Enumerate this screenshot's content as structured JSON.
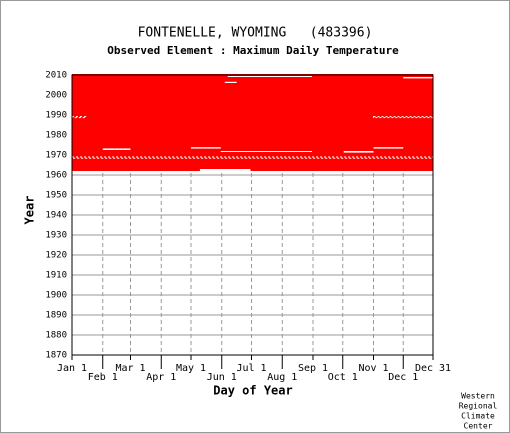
{
  "chart_data": {
    "type": "coverage",
    "title": "FONTENELLE, WYOMING   (483396)",
    "subtitle": "Observed Element : Maximum Daily Temperature",
    "x_label": "Day of Year",
    "y_label": "Year",
    "credit": [
      "Western",
      "Regional",
      "Climate",
      "Center"
    ],
    "color": "#ff0000",
    "gap_color": "#ffffff",
    "xlim": [
      1,
      365
    ],
    "ylim": [
      1870,
      2010
    ],
    "xticks": [
      {
        "value": 1,
        "label": "Jan 1"
      },
      {
        "value": 32,
        "label": "Feb 1"
      },
      {
        "value": 60,
        "label": "Mar 1"
      },
      {
        "value": 91,
        "label": "Apr 1"
      },
      {
        "value": 121,
        "label": "May 1"
      },
      {
        "value": 152,
        "label": "Jun 1"
      },
      {
        "value": 182,
        "label": "Jul 1"
      },
      {
        "value": 213,
        "label": "Aug 1"
      },
      {
        "value": 244,
        "label": "Sep 1"
      },
      {
        "value": 274,
        "label": "Oct 1"
      },
      {
        "value": 305,
        "label": "Nov 1"
      },
      {
        "value": 335,
        "label": "Dec 1"
      },
      {
        "value": 365,
        "label": "Dec 31"
      }
    ],
    "yticks": [
      2010,
      2000,
      1990,
      1980,
      1970,
      1960,
      1950,
      1940,
      1930,
      1920,
      1910,
      1900,
      1890,
      1880,
      1870
    ],
    "blocks": [
      {
        "x": [
          1,
          365
        ],
        "y": [
          1962,
          2010.5
        ]
      }
    ],
    "gaps": [
      {
        "x": [
          130,
          181
        ],
        "y": [
          1962,
          1963
        ],
        "style": "solid"
      },
      {
        "x": [
          32,
          60
        ],
        "y": [
          1972.5,
          1973.3
        ],
        "style": "solid"
      },
      {
        "x": [
          121,
          151
        ],
        "y": [
          1973.2,
          1973.9
        ],
        "style": "solid"
      },
      {
        "x": [
          151,
          243
        ],
        "y": [
          1971.5,
          1972
        ],
        "style": "solid"
      },
      {
        "x": [
          275,
          305
        ],
        "y": [
          1971.2,
          1972
        ],
        "style": "solid"
      },
      {
        "x": [
          305,
          335
        ],
        "y": [
          1973.2,
          1973.9
        ],
        "style": "solid"
      },
      {
        "x": [
          335,
          365
        ],
        "y": [
          2008.3,
          2009
        ],
        "style": "solid"
      },
      {
        "x": [
          158,
          243
        ],
        "y": [
          2009,
          2009.5
        ],
        "style": "solid"
      },
      {
        "x": [
          155,
          167
        ],
        "y": [
          2006,
          2006.6
        ],
        "style": "solid"
      },
      {
        "x": [
          1,
          365
        ],
        "y": [
          1968.4,
          1969
        ],
        "style": "dotted"
      },
      {
        "x": [
          1,
          15
        ],
        "y": [
          1988.7,
          1989.2
        ],
        "style": "dotted"
      },
      {
        "x": [
          305,
          365
        ],
        "y": [
          1988.7,
          1989.2
        ],
        "style": "dotted"
      }
    ]
  }
}
